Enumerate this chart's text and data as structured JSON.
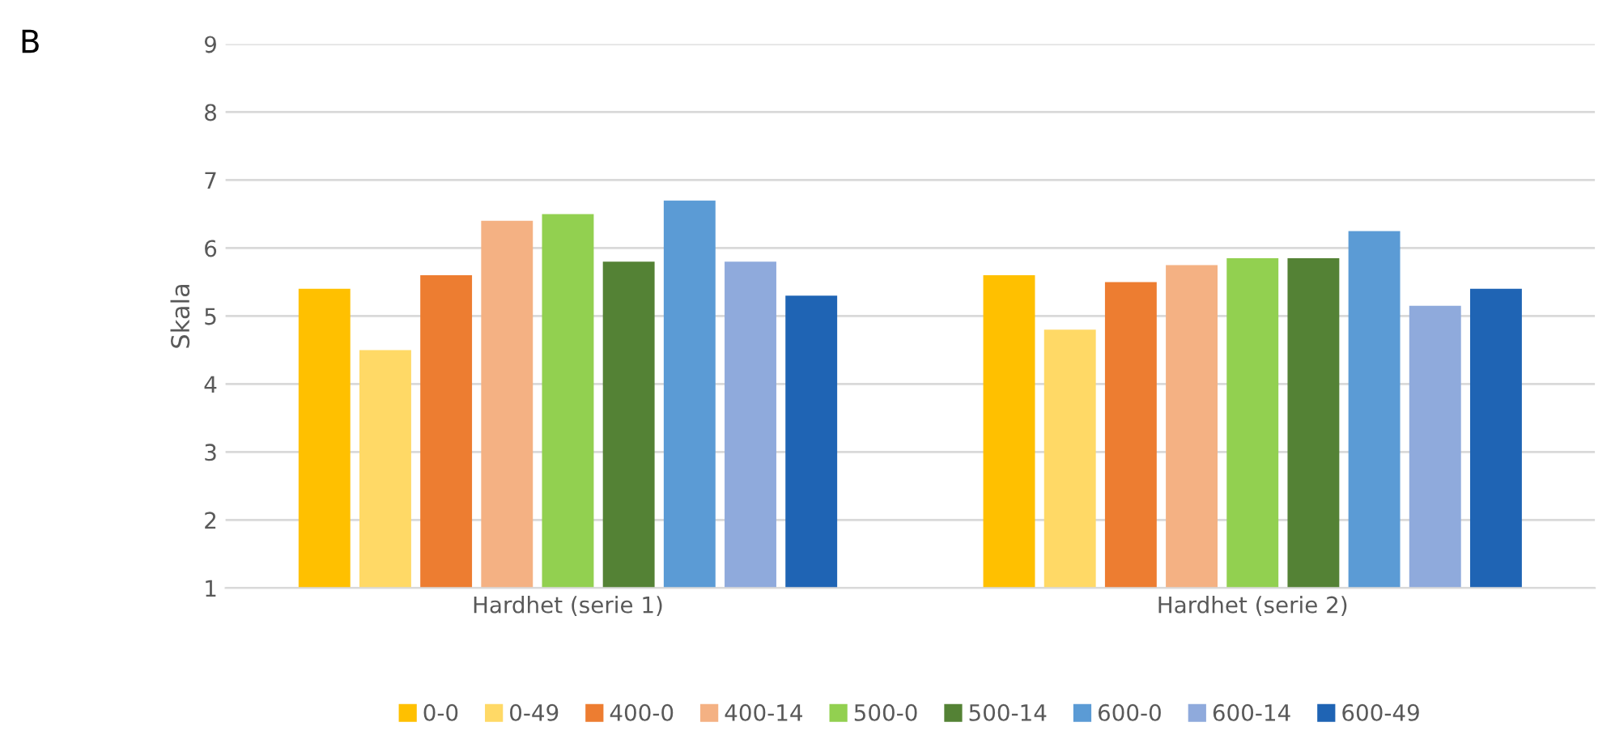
{
  "chart_data": {
    "type": "bar",
    "ylabel": "Skala",
    "annotations": [
      "B"
    ],
    "categories": [
      "Hardhet (serie 1)",
      "Hardhet (serie 2)"
    ],
    "series": [
      {
        "name": "0-0",
        "color": "#ffc000",
        "values": [
          5.4,
          5.6
        ]
      },
      {
        "name": "0-49",
        "color": "#ffd966",
        "values": [
          4.5,
          4.8
        ]
      },
      {
        "name": "400-0",
        "color": "#ed7d31",
        "values": [
          5.6,
          5.5
        ]
      },
      {
        "name": "400-14",
        "color": "#f4b183",
        "values": [
          6.4,
          5.75
        ]
      },
      {
        "name": "500-0",
        "color": "#92d050",
        "values": [
          6.5,
          5.85
        ]
      },
      {
        "name": "500-14",
        "color": "#548235",
        "values": [
          5.8,
          5.85
        ]
      },
      {
        "name": "600-0",
        "color": "#5b9bd5",
        "values": [
          6.7,
          6.25
        ]
      },
      {
        "name": "600-14",
        "color": "#8faadc",
        "values": [
          5.8,
          5.15
        ]
      },
      {
        "name": "600-49",
        "color": "#1f64b4",
        "values": [
          5.3,
          5.4
        ]
      }
    ],
    "ylim": [
      1,
      9
    ],
    "yticks": [
      1,
      2,
      3,
      4,
      5,
      6,
      7,
      8,
      9
    ],
    "grid": "y",
    "legend": "bottom"
  }
}
